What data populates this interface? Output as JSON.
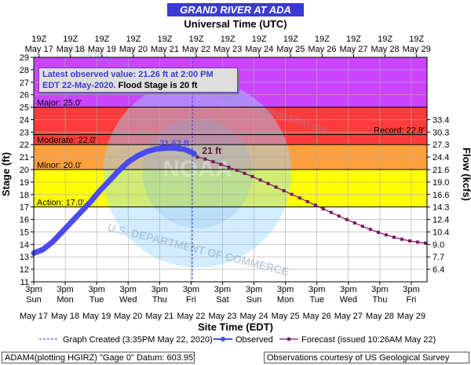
{
  "chart_data": {
    "type": "line",
    "title": "GRAND RIVER AT ADA",
    "top_axis_label": "Universal Time (UTC)",
    "bottom_axis_label": "Site Time (EDT)",
    "ylabel_left": "Stage (ft)",
    "ylabel_right": "Flow (kcfs)",
    "ylim": [
      11,
      29
    ],
    "xlim_days_from_may17": [
      0,
      12.5
    ],
    "left_ticks": [
      11,
      12,
      13,
      14,
      15,
      16,
      17,
      18,
      19,
      20,
      21,
      22,
      23,
      24,
      25,
      26,
      27,
      28,
      29
    ],
    "right_ticks": [
      {
        "stage": 12,
        "label": "6.4"
      },
      {
        "stage": 13,
        "label": "7.7"
      },
      {
        "stage": 14,
        "label": "9.0"
      },
      {
        "stage": 15,
        "label": "10.4"
      },
      {
        "stage": 16,
        "label": "12.4"
      },
      {
        "stage": 17,
        "label": "14.3"
      },
      {
        "stage": 18,
        "label": "16.6"
      },
      {
        "stage": 19,
        "label": "19.0"
      },
      {
        "stage": 20,
        "label": "21.6"
      },
      {
        "stage": 21,
        "label": "24.4"
      },
      {
        "stage": 22,
        "label": "27.3"
      },
      {
        "stage": 23,
        "label": "30.3"
      },
      {
        "stage": 24,
        "label": "33.4"
      }
    ],
    "bottom_hours": [
      "3pm",
      "3pm",
      "3pm",
      "3pm",
      "3pm",
      "3pm",
      "3pm",
      "3pm",
      "3pm",
      "3pm",
      "3pm",
      "3pm",
      "3pm"
    ],
    "bottom_days": [
      "Sun",
      "Mon",
      "Tue",
      "Wed",
      "Thu",
      "Fri",
      "Sat",
      "Sun",
      "Mon",
      "Tue",
      "Wed",
      "Thu",
      "Fri"
    ],
    "bottom_dates": [
      "May 17",
      "May 18",
      "May 19",
      "May 20",
      "May 21",
      "May 22",
      "May 23",
      "May 24",
      "May 25",
      "May 26",
      "May 27",
      "May 28",
      "May 29"
    ],
    "top_hours": [
      "19Z",
      "19Z",
      "19Z",
      "19Z",
      "19Z",
      "19Z",
      "19Z",
      "19Z",
      "19Z",
      "19Z",
      "19Z",
      "19Z",
      "19Z"
    ],
    "top_dates": [
      "May 17",
      "May 18",
      "May 19",
      "May 20",
      "May 21",
      "May 22",
      "May 23",
      "May 24",
      "May 25",
      "May 26",
      "May 27",
      "May 28",
      "May 29"
    ],
    "zones": [
      {
        "name": "Action",
        "from": 17,
        "to": 20,
        "color": "#ffff00"
      },
      {
        "name": "Minor",
        "from": 20,
        "to": 22,
        "color": "#ffa03c"
      },
      {
        "name": "Moderate",
        "from": 22,
        "to": 25,
        "color": "#ff3b3b"
      },
      {
        "name": "Major",
        "from": 25,
        "to": 29,
        "color": "#cc44ff"
      }
    ],
    "stage_labels": [
      {
        "text": "Action: 17.0'",
        "value": 17
      },
      {
        "text": "Minor: 20.0'",
        "value": 20
      },
      {
        "text": "Moderate: 22.0'",
        "value": 22
      },
      {
        "text": "Major: 25.0'",
        "value": 25
      }
    ],
    "record": {
      "text": "Record: 22.8'",
      "value": 22.8
    },
    "series": [
      {
        "name": "Observed",
        "color": "#4a4af0",
        "points": [
          [
            0.0,
            13.3
          ],
          [
            0.3,
            13.6
          ],
          [
            0.6,
            14.2
          ],
          [
            0.9,
            15.0
          ],
          [
            1.2,
            15.8
          ],
          [
            1.5,
            16.6
          ],
          [
            1.8,
            17.4
          ],
          [
            2.1,
            18.3
          ],
          [
            2.4,
            19.1
          ],
          [
            2.7,
            19.9
          ],
          [
            3.0,
            20.6
          ],
          [
            3.3,
            21.1
          ],
          [
            3.6,
            21.45
          ],
          [
            3.9,
            21.65
          ],
          [
            4.2,
            21.72
          ],
          [
            4.5,
            21.72
          ],
          [
            4.8,
            21.62
          ],
          [
            5.0,
            21.4
          ],
          [
            5.1,
            21.26
          ]
        ]
      },
      {
        "name": "Forecast",
        "color": "#7a1860",
        "points": [
          [
            5.2,
            21.0
          ],
          [
            5.45,
            20.84
          ],
          [
            5.7,
            20.63
          ],
          [
            5.95,
            20.41
          ],
          [
            6.2,
            20.18
          ],
          [
            6.45,
            19.95
          ],
          [
            6.7,
            19.7
          ],
          [
            6.95,
            19.44
          ],
          [
            7.2,
            19.16
          ],
          [
            7.45,
            18.88
          ],
          [
            7.7,
            18.59
          ],
          [
            7.95,
            18.3
          ],
          [
            8.2,
            18.01
          ],
          [
            8.45,
            17.72
          ],
          [
            8.7,
            17.43
          ],
          [
            8.95,
            17.14
          ],
          [
            9.2,
            16.85
          ],
          [
            9.45,
            16.56
          ],
          [
            9.7,
            16.27
          ],
          [
            9.95,
            15.99
          ],
          [
            10.2,
            15.72
          ],
          [
            10.45,
            15.45
          ],
          [
            10.7,
            15.2
          ],
          [
            10.95,
            14.97
          ],
          [
            11.2,
            14.76
          ],
          [
            11.45,
            14.57
          ],
          [
            11.7,
            14.41
          ],
          [
            11.95,
            14.28
          ],
          [
            12.2,
            14.18
          ],
          [
            12.45,
            14.1
          ]
        ]
      }
    ],
    "annotations": [
      {
        "text": "21.62 ft",
        "x": 4.0,
        "y": 21.9
      },
      {
        "text": "21 ft",
        "x": 5.35,
        "y": 21.25
      }
    ],
    "now_line_x": 5.04,
    "grid": true
  },
  "info": {
    "line1": "Latest observed value: 21.26 ft at 2:00 PM",
    "line2_prefix": "EDT 22-May-2020.",
    "line2_bold": " Flood Stage is 20 ft"
  },
  "legend": {
    "created": "Graph Created (3:35PM May 22, 2020)",
    "observed": "Observed",
    "forecast": "Forecast (issued 10:26AM May 22)"
  },
  "footer": {
    "left": "ADAM4(plotting HGIRZ) \"Gage 0\" Datum: 603.95'",
    "right": "Observations courtesy of US Geological Survey"
  },
  "watermark": {
    "text": "NATIONAL OCEANIC AND ATMOSPHERIC ADMINISTRATION",
    "text_bottom": "U.S. DEPARTMENT OF COMMERCE",
    "logo": "NOAA"
  },
  "colors": {
    "title_bar": "#3a3ad6",
    "plot_bg": "#ffffff",
    "grid": "#aaaaaa"
  }
}
